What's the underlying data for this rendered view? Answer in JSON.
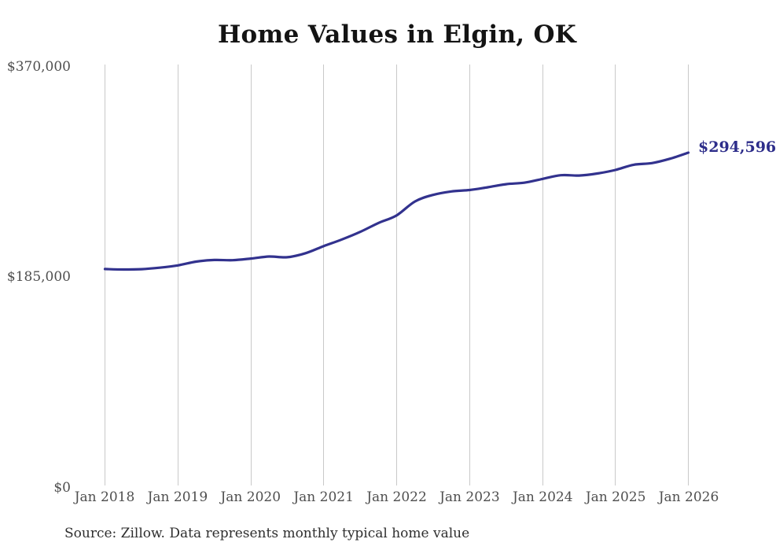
{
  "footer": {
    "source": "Source: Zillow. Data represents monthly typical home value"
  },
  "chart_data": {
    "type": "line",
    "title": "Home Values in Elgin, OK",
    "xlabel": "",
    "ylabel": "",
    "ylim": [
      0,
      370000
    ],
    "x_range": [
      "Jan 2018",
      "Jan 2026"
    ],
    "grid": "vertical-only",
    "legend": "none",
    "line_color": "#32328e",
    "gridline_color": "#c9c9c9",
    "end_label": "$294,596",
    "end_value": 294596,
    "y_tick_labels": [
      "$370,000",
      "$185,000",
      "$0"
    ],
    "y_tick_values": [
      370000,
      185000,
      0
    ],
    "x_tick_labels": [
      "Jan 2018",
      "Jan 2019",
      "Jan 2020",
      "Jan 2021",
      "Jan 2022",
      "Jan 2023",
      "Jan 2024",
      "Jan 2025",
      "Jan 2026"
    ],
    "series": [
      {
        "name": "Typical home value",
        "points": [
          [
            "2018-01",
            192300
          ],
          [
            "2018-04",
            191900
          ],
          [
            "2018-07",
            192200
          ],
          [
            "2018-10",
            193500
          ],
          [
            "2019-01",
            195500
          ],
          [
            "2019-04",
            198800
          ],
          [
            "2019-07",
            200300
          ],
          [
            "2019-10",
            200100
          ],
          [
            "2020-01",
            201500
          ],
          [
            "2020-04",
            203300
          ],
          [
            "2020-07",
            202700
          ],
          [
            "2020-10",
            206200
          ],
          [
            "2021-01",
            212500
          ],
          [
            "2021-04",
            218300
          ],
          [
            "2021-07",
            225000
          ],
          [
            "2021-10",
            232800
          ],
          [
            "2022-01",
            239500
          ],
          [
            "2022-04",
            251700
          ],
          [
            "2022-07",
            257500
          ],
          [
            "2022-10",
            260500
          ],
          [
            "2023-01",
            261800
          ],
          [
            "2023-04",
            264200
          ],
          [
            "2023-07",
            266900
          ],
          [
            "2023-10",
            268200
          ],
          [
            "2024-01",
            271500
          ],
          [
            "2024-04",
            274800
          ],
          [
            "2024-07",
            274500
          ],
          [
            "2024-10",
            276300
          ],
          [
            "2025-01",
            279400
          ],
          [
            "2025-04",
            284000
          ],
          [
            "2025-07",
            285400
          ],
          [
            "2025-10",
            289300
          ],
          [
            "2026-01",
            294596
          ]
        ]
      }
    ]
  }
}
